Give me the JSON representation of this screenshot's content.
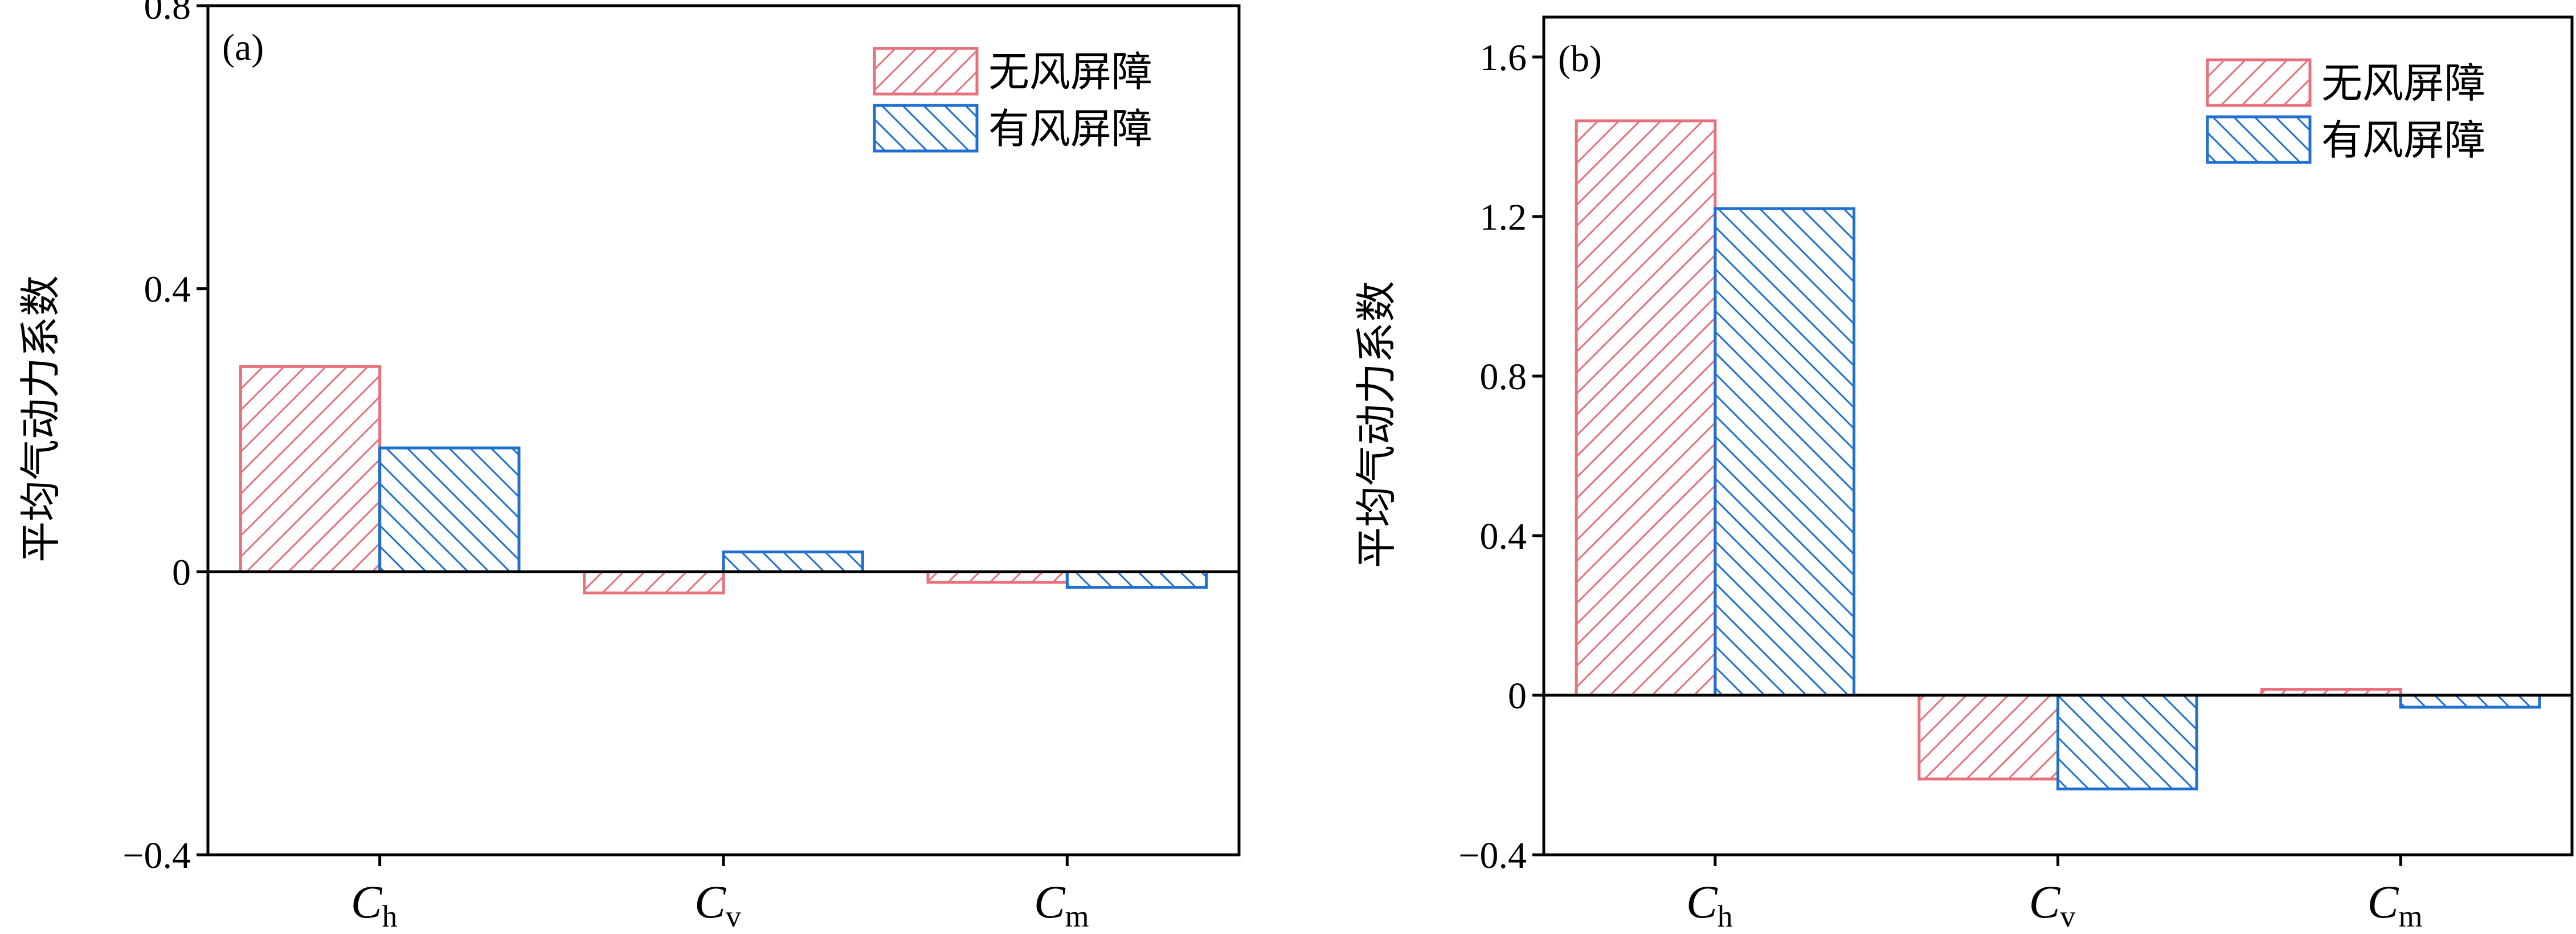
{
  "colors": {
    "no_barrier": "#e8707c",
    "with_barrier": "#1f6fd1",
    "axis": "#000000"
  },
  "chart_data": [
    {
      "type": "bar",
      "panel_label": "(a)",
      "ylabel": "平均气动力系数",
      "categories": [
        {
          "main": "C",
          "sub": "h"
        },
        {
          "main": "C",
          "sub": "v"
        },
        {
          "main": "C",
          "sub": "m"
        }
      ],
      "series": [
        {
          "name": "无风屏障",
          "values": [
            0.29,
            -0.03,
            -0.015
          ]
        },
        {
          "name": "有风屏障",
          "values": [
            0.175,
            0.028,
            -0.022
          ]
        }
      ],
      "ylim": [
        -0.4,
        0.8
      ],
      "yticks": [
        -0.4,
        0,
        0.4,
        0.8
      ],
      "ytick_labels": [
        "−0.4",
        "0",
        "0.4",
        "0.8"
      ],
      "legend_position": "top-right"
    },
    {
      "type": "bar",
      "panel_label": "(b)",
      "ylabel": "平均气动力系数",
      "categories": [
        {
          "main": "C",
          "sub": "h"
        },
        {
          "main": "C",
          "sub": "v"
        },
        {
          "main": "C",
          "sub": "m"
        }
      ],
      "series": [
        {
          "name": "无风屏障",
          "values": [
            1.44,
            -0.21,
            0.015
          ]
        },
        {
          "name": "有风屏障",
          "values": [
            1.22,
            -0.235,
            -0.03
          ]
        }
      ],
      "ylim": [
        -0.4,
        1.7
      ],
      "yticks": [
        -0.4,
        0,
        0.4,
        0.8,
        1.2,
        1.6
      ],
      "ytick_labels": [
        "−0.4",
        "0",
        "0.4",
        "0.8",
        "1.2",
        "1.6"
      ],
      "legend_position": "top-right"
    }
  ]
}
